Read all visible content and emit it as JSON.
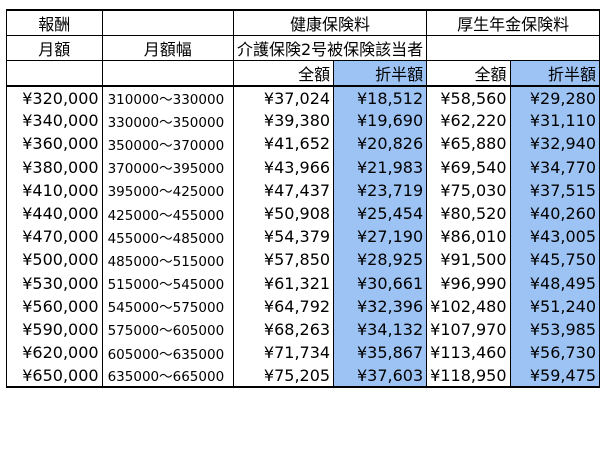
{
  "table": {
    "header": {
      "compensation": "報酬",
      "monthly_amount": "月額",
      "monthly_range": "月額幅",
      "health_insurance": "健康保険料",
      "nursing_care_note": "介護保険2号被保険該当者",
      "pension_insurance": "厚生年金保険料",
      "full_amount": "全額",
      "half_amount": "折半額"
    },
    "columns_highlight_color": "#9dc3f4",
    "rows": [
      {
        "monthly": "¥320,000",
        "range": "310000～330000",
        "health_full": "¥37,024",
        "health_half": "¥18,512",
        "pension_full": "¥58,560",
        "pension_half": "¥29,280"
      },
      {
        "monthly": "¥340,000",
        "range": "330000～350000",
        "health_full": "¥39,380",
        "health_half": "¥19,690",
        "pension_full": "¥62,220",
        "pension_half": "¥31,110"
      },
      {
        "monthly": "¥360,000",
        "range": "350000～370000",
        "health_full": "¥41,652",
        "health_half": "¥20,826",
        "pension_full": "¥65,880",
        "pension_half": "¥32,940"
      },
      {
        "monthly": "¥380,000",
        "range": "370000～395000",
        "health_full": "¥43,966",
        "health_half": "¥21,983",
        "pension_full": "¥69,540",
        "pension_half": "¥34,770"
      },
      {
        "monthly": "¥410,000",
        "range": "395000～425000",
        "health_full": "¥47,437",
        "health_half": "¥23,719",
        "pension_full": "¥75,030",
        "pension_half": "¥37,515"
      },
      {
        "monthly": "¥440,000",
        "range": "425000～455000",
        "health_full": "¥50,908",
        "health_half": "¥25,454",
        "pension_full": "¥80,520",
        "pension_half": "¥40,260"
      },
      {
        "monthly": "¥470,000",
        "range": "455000～485000",
        "health_full": "¥54,379",
        "health_half": "¥27,190",
        "pension_full": "¥86,010",
        "pension_half": "¥43,005"
      },
      {
        "monthly": "¥500,000",
        "range": "485000～515000",
        "health_full": "¥57,850",
        "health_half": "¥28,925",
        "pension_full": "¥91,500",
        "pension_half": "¥45,750"
      },
      {
        "monthly": "¥530,000",
        "range": "515000～545000",
        "health_full": "¥61,321",
        "health_half": "¥30,661",
        "pension_full": "¥96,990",
        "pension_half": "¥48,495"
      },
      {
        "monthly": "¥560,000",
        "range": "545000～575000",
        "health_full": "¥64,792",
        "health_half": "¥32,396",
        "pension_full": "¥102,480",
        "pension_half": "¥51,240"
      },
      {
        "monthly": "¥590,000",
        "range": "575000～605000",
        "health_full": "¥68,263",
        "health_half": "¥34,132",
        "pension_full": "¥107,970",
        "pension_half": "¥53,985"
      },
      {
        "monthly": "¥620,000",
        "range": "605000～635000",
        "health_full": "¥71,734",
        "health_half": "¥35,867",
        "pension_full": "¥113,460",
        "pension_half": "¥56,730"
      },
      {
        "monthly": "¥650,000",
        "range": "635000～665000",
        "health_full": "¥75,205",
        "health_half": "¥37,603",
        "pension_full": "¥118,950",
        "pension_half": "¥59,475"
      }
    ]
  }
}
